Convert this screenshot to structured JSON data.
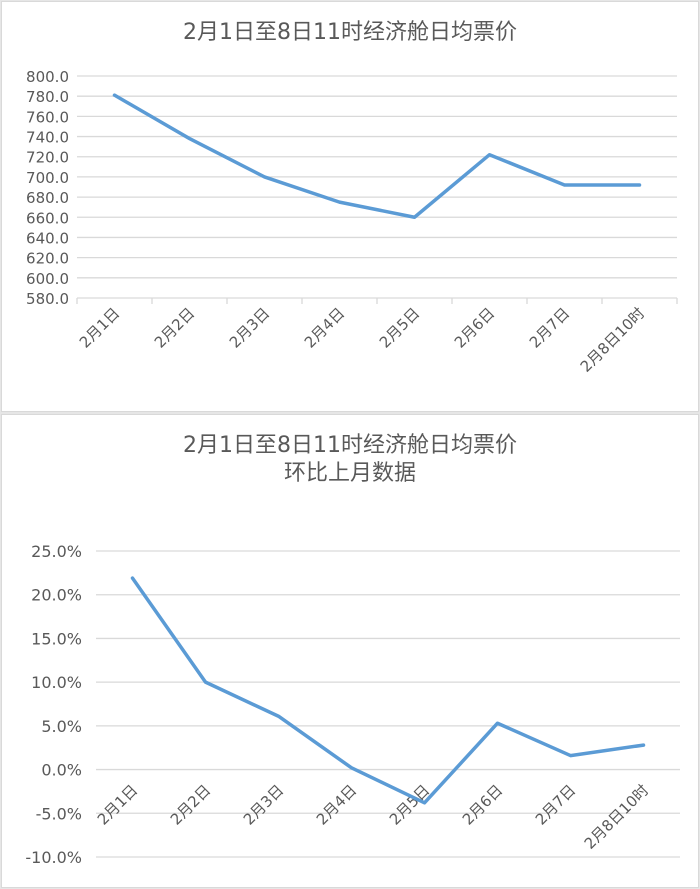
{
  "chart_data": [
    {
      "type": "line",
      "title": "2月1日至8日11时经济舱日均票价",
      "xlabel": "",
      "ylabel": "",
      "categories": [
        "2月1日",
        "2月2日",
        "2月3日",
        "2月4日",
        "2月5日",
        "2月6日",
        "2月7日",
        "2月8日10时"
      ],
      "series": [
        {
          "name": "经济舱日均票价",
          "values": [
            781,
            738,
            700,
            675,
            660,
            722,
            692,
            692
          ]
        }
      ],
      "yticks": [
        "800.0",
        "780.0",
        "760.0",
        "740.0",
        "720.0",
        "700.0",
        "680.0",
        "660.0",
        "640.0",
        "620.0",
        "600.0",
        "580.0"
      ],
      "ylim": [
        580,
        800
      ],
      "grid": true,
      "legend": "none",
      "line_color": "#5b9bd5"
    },
    {
      "type": "line",
      "title": "2月1日至8日11时经济舱日均票价",
      "subtitle": "环比上月数据",
      "xlabel": "",
      "ylabel": "",
      "categories": [
        "2月1日",
        "2月2日",
        "2月3日",
        "2月4日",
        "2月5日",
        "2月6日",
        "2月7日",
        "2月8日10时"
      ],
      "series": [
        {
          "name": "环比上月",
          "values": [
            21.9,
            10.0,
            6.1,
            0.2,
            -3.8,
            5.3,
            1.6,
            2.8
          ]
        }
      ],
      "yticks": [
        "25.0%",
        "20.0%",
        "15.0%",
        "10.0%",
        "5.0%",
        "0.0%",
        "-5.0%",
        "-10.0%"
      ],
      "ylim": [
        -10,
        25
      ],
      "value_format": "percent",
      "grid": true,
      "legend": "none",
      "line_color": "#5b9bd5"
    }
  ]
}
